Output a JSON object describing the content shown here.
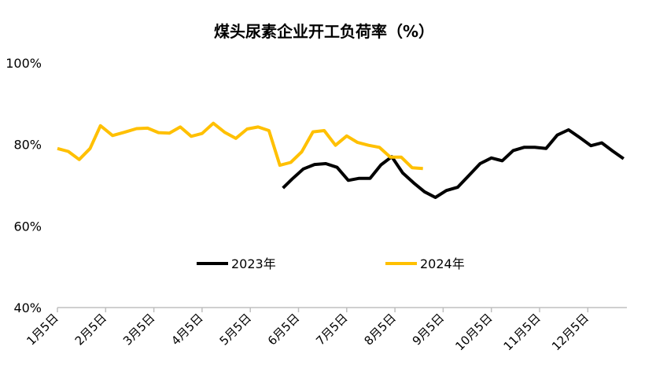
{
  "chart_data": {
    "type": "line",
    "title": "煤头尿素企业开工负荷率（%）",
    "xlabel": "",
    "ylabel": "",
    "y_tick_labels": [
      "40%",
      "60%",
      "80%",
      "100%"
    ],
    "ylim": [
      40,
      100
    ],
    "x_tick_labels": [
      "1月5日",
      "2月5日",
      "3月5日",
      "4月5日",
      "5月5日",
      "6月5日",
      "7月5日",
      "8月5日",
      "9月5日",
      "10月5日",
      "11月5日",
      "12月5日"
    ],
    "grid": false,
    "legend_position": "center",
    "series": [
      {
        "name": "2023年",
        "color": "#000000",
        "x": [
          "5/26",
          "6/1",
          "6/8",
          "6/15",
          "6/22",
          "6/29",
          "7/6",
          "7/13",
          "7/20",
          "7/27",
          "8/3",
          "8/10",
          "8/17",
          "8/24",
          "8/31",
          "9/7",
          "9/14",
          "9/21",
          "9/28",
          "10/5",
          "10/12",
          "10/19",
          "10/26",
          "11/2",
          "11/9",
          "11/16",
          "11/23",
          "11/30",
          "12/7",
          "12/14",
          "12/21",
          "12/28"
        ],
        "values": [
          69.3,
          71.5,
          74.0,
          75.1,
          75.3,
          74.4,
          71.2,
          71.7,
          71.7,
          75.0,
          77.0,
          73.0,
          70.6,
          68.4,
          67.0,
          68.7,
          69.5,
          72.4,
          75.3,
          76.7,
          76.0,
          78.5,
          79.3,
          79.3,
          79.0,
          82.3,
          83.6,
          81.7,
          79.7,
          80.4,
          78.4,
          76.5
        ]
      },
      {
        "name": "2024年",
        "color": "#FFC000",
        "x": [
          "1/5",
          "1/12",
          "1/19",
          "1/26",
          "2/2",
          "2/9",
          "2/16",
          "2/23",
          "3/1",
          "3/8",
          "3/15",
          "3/22",
          "3/29",
          "4/5",
          "4/12",
          "4/19",
          "4/26",
          "5/3",
          "5/10",
          "5/17",
          "5/24",
          "5/31",
          "6/7",
          "6/14",
          "6/21",
          "6/28",
          "7/5",
          "7/12",
          "7/19",
          "7/26",
          "8/2",
          "8/9",
          "8/16",
          "8/23"
        ],
        "values": [
          79.0,
          78.3,
          76.3,
          79.0,
          84.6,
          82.2,
          83.0,
          83.9,
          84.0,
          82.9,
          82.8,
          84.3,
          82.0,
          82.7,
          85.2,
          83.0,
          81.5,
          83.8,
          84.3,
          83.4,
          74.9,
          75.6,
          78.2,
          83.1,
          83.4,
          79.8,
          82.1,
          80.5,
          79.8,
          79.3,
          76.9,
          76.9,
          74.3,
          74.1
        ]
      }
    ]
  }
}
